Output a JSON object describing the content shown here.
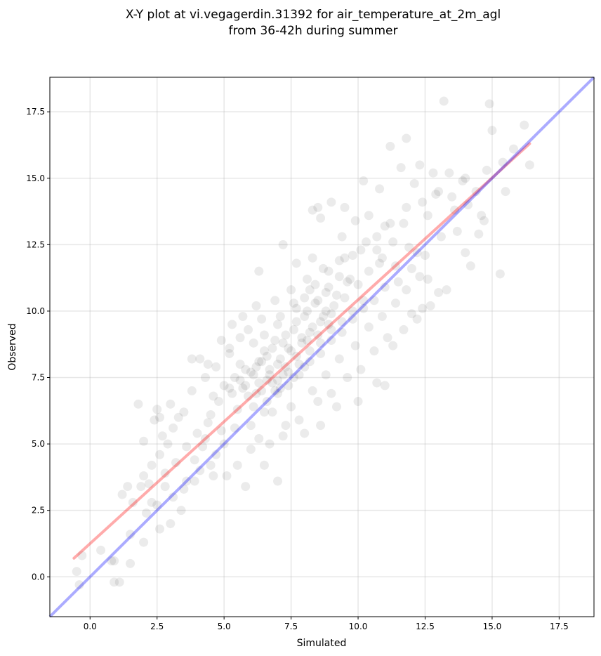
{
  "chart_data": {
    "type": "scatter",
    "title": [
      "X-Y plot at vi.vegagerdin.31392 for air_temperature_at_2m_agl",
      "from 36-42h during summer"
    ],
    "xlabel": "Simulated",
    "ylabel": "Observed",
    "xlim": [
      -1.5,
      18.8
    ],
    "ylim": [
      -1.5,
      18.8
    ],
    "xticks": [
      0.0,
      2.5,
      5.0,
      7.5,
      10.0,
      12.5,
      15.0,
      17.5
    ],
    "yticks": [
      0.0,
      2.5,
      5.0,
      7.5,
      10.0,
      12.5,
      15.0,
      17.5
    ],
    "xtick_labels": [
      "0.0",
      "2.5",
      "5.0",
      "7.5",
      "10.0",
      "12.5",
      "15.0",
      "17.5"
    ],
    "ytick_labels": [
      "0.0",
      "2.5",
      "5.0",
      "7.5",
      "10.0",
      "12.5",
      "15.0",
      "17.5"
    ],
    "grid": true,
    "point_color": "#000000",
    "point_alpha": 0.08,
    "identity_line": {
      "color": "#0000ff",
      "alpha": 0.33,
      "x": [
        -1.5,
        18.8
      ],
      "y": [
        -1.5,
        18.8
      ]
    },
    "fit_line": {
      "color": "#ff0000",
      "alpha": 0.33,
      "x": [
        -0.6,
        16.4
      ],
      "y": [
        0.7,
        16.3
      ]
    },
    "points": [
      [
        -0.5,
        0.2
      ],
      [
        -0.3,
        0.8
      ],
      [
        0.4,
        1.0
      ],
      [
        0.8,
        0.6
      ],
      [
        1.1,
        -0.2
      ],
      [
        0.9,
        -0.2
      ],
      [
        0.9,
        0.6
      ],
      [
        1.5,
        0.5
      ],
      [
        -0.4,
        -0.3
      ],
      [
        1.8,
        6.5
      ],
      [
        2.0,
        5.1
      ],
      [
        2.5,
        6.3
      ],
      [
        2.6,
        6.0
      ],
      [
        2.2,
        3.5
      ],
      [
        2.8,
        3.9
      ],
      [
        2.5,
        2.7
      ],
      [
        2.0,
        1.3
      ],
      [
        1.5,
        1.6
      ],
      [
        1.2,
        3.1
      ],
      [
        1.4,
        3.4
      ],
      [
        3.0,
        2.0
      ],
      [
        3.4,
        2.5
      ],
      [
        4.1,
        8.2
      ],
      [
        3.8,
        8.2
      ],
      [
        4.4,
        8.0
      ],
      [
        4.9,
        8.9
      ],
      [
        5.2,
        8.6
      ],
      [
        6.3,
        11.5
      ],
      [
        7.2,
        12.5
      ],
      [
        7.7,
        11.8
      ],
      [
        8.3,
        12.0
      ],
      [
        8.3,
        13.8
      ],
      [
        8.5,
        13.9
      ],
      [
        9.0,
        14.1
      ],
      [
        8.6,
        13.5
      ],
      [
        9.5,
        13.9
      ],
      [
        10.2,
        14.9
      ],
      [
        10.8,
        14.6
      ],
      [
        11.2,
        16.2
      ],
      [
        11.8,
        16.5
      ],
      [
        13.2,
        17.9
      ],
      [
        14.9,
        17.8
      ],
      [
        15.0,
        16.8
      ],
      [
        16.2,
        17.0
      ],
      [
        15.8,
        16.1
      ],
      [
        15.5,
        14.5
      ],
      [
        16.4,
        15.5
      ],
      [
        15.3,
        11.4
      ],
      [
        14.2,
        11.7
      ],
      [
        13.7,
        13.0
      ],
      [
        13.0,
        10.7
      ],
      [
        12.6,
        11.2
      ],
      [
        12.4,
        10.1
      ],
      [
        12.0,
        9.9
      ],
      [
        11.1,
        9.0
      ],
      [
        11.0,
        7.2
      ],
      [
        10.7,
        7.3
      ],
      [
        10.0,
        6.6
      ],
      [
        9.2,
        6.4
      ],
      [
        8.6,
        5.7
      ],
      [
        8.0,
        5.4
      ],
      [
        7.0,
        3.6
      ],
      [
        6.5,
        4.2
      ],
      [
        5.8,
        3.4
      ],
      [
        5.1,
        3.8
      ],
      [
        4.6,
        3.8
      ],
      [
        6.3,
        5.2
      ],
      [
        7.3,
        5.7
      ],
      [
        14.6,
        13.6
      ],
      [
        14.7,
        13.4
      ],
      [
        14.1,
        14.0
      ],
      [
        13.4,
        15.2
      ],
      [
        12.8,
        15.2
      ],
      [
        12.3,
        15.5
      ],
      [
        12.1,
        14.8
      ],
      [
        11.6,
        15.4
      ],
      [
        10.4,
        13.6
      ],
      [
        9.9,
        13.4
      ],
      [
        9.4,
        12.8
      ],
      [
        10.7,
        12.3
      ],
      [
        11.9,
        12.4
      ],
      [
        12.6,
        13.6
      ],
      [
        13.1,
        12.8
      ],
      [
        12.2,
        12.2
      ],
      [
        11.4,
        11.7
      ],
      [
        10.8,
        11.8
      ],
      [
        9.7,
        11.2
      ],
      [
        8.8,
        10.7
      ],
      [
        8.2,
        10.8
      ],
      [
        7.7,
        10.1
      ],
      [
        7.0,
        9.5
      ],
      [
        6.4,
        9.7
      ],
      [
        5.9,
        9.3
      ],
      [
        5.6,
        9.0
      ],
      [
        5.2,
        8.4
      ],
      [
        4.7,
        7.9
      ],
      [
        4.3,
        7.5
      ],
      [
        3.8,
        7.0
      ],
      [
        3.5,
        6.2
      ],
      [
        3.1,
        5.6
      ],
      [
        2.9,
        5.0
      ],
      [
        2.6,
        4.6
      ],
      [
        2.3,
        4.2
      ],
      [
        2.0,
        3.8
      ],
      [
        3.6,
        4.9
      ],
      [
        4.0,
        5.4
      ],
      [
        4.5,
        6.1
      ],
      [
        4.9,
        5.5
      ],
      [
        5.3,
        6.9
      ],
      [
        5.7,
        7.1
      ],
      [
        6.1,
        7.6
      ],
      [
        6.4,
        8.1
      ],
      [
        6.8,
        8.6
      ],
      [
        7.2,
        8.8
      ],
      [
        7.6,
        9.3
      ],
      [
        8.0,
        9.8
      ],
      [
        8.4,
        10.3
      ],
      [
        8.8,
        10.0
      ],
      [
        9.2,
        10.6
      ],
      [
        9.6,
        11.1
      ],
      [
        10.0,
        11.0
      ],
      [
        10.4,
        11.5
      ],
      [
        10.9,
        12.0
      ],
      [
        11.3,
        12.6
      ],
      [
        6.0,
        5.7
      ],
      [
        6.5,
        6.2
      ],
      [
        7.0,
        6.9
      ],
      [
        7.4,
        7.2
      ],
      [
        7.8,
        7.6
      ],
      [
        8.2,
        8.1
      ],
      [
        8.6,
        8.4
      ],
      [
        9.0,
        8.9
      ],
      [
        9.4,
        9.2
      ],
      [
        9.8,
        9.7
      ],
      [
        10.2,
        10.1
      ],
      [
        10.6,
        10.4
      ],
      [
        11.0,
        10.9
      ],
      [
        11.5,
        11.1
      ],
      [
        12.0,
        11.6
      ],
      [
        12.5,
        12.1
      ],
      [
        5.5,
        6.3
      ],
      [
        5.9,
        6.8
      ],
      [
        6.3,
        7.3
      ],
      [
        6.7,
        7.8
      ],
      [
        7.1,
        8.2
      ],
      [
        7.5,
        8.5
      ],
      [
        7.9,
        9.0
      ],
      [
        8.3,
        9.4
      ],
      [
        8.7,
        9.8
      ],
      [
        9.1,
        10.2
      ],
      [
        9.5,
        10.5
      ],
      [
        5.4,
        7.5
      ],
      [
        5.8,
        7.8
      ],
      [
        6.2,
        7.9
      ],
      [
        6.6,
        7.4
      ],
      [
        6.9,
        7.0
      ],
      [
        7.3,
        7.9
      ],
      [
        7.7,
        8.3
      ],
      [
        8.1,
        8.9
      ],
      [
        8.5,
        9.1
      ],
      [
        8.9,
        9.5
      ],
      [
        6.1,
        6.4
      ],
      [
        6.6,
        6.6
      ],
      [
        7.1,
        7.1
      ],
      [
        7.6,
        7.5
      ],
      [
        8.0,
        7.9
      ],
      [
        4.8,
        6.6
      ],
      [
        5.2,
        7.1
      ],
      [
        5.6,
        7.4
      ],
      [
        4.4,
        5.8
      ],
      [
        4.2,
        4.9
      ],
      [
        3.9,
        4.4
      ],
      [
        4.7,
        4.6
      ],
      [
        5.0,
        5.0
      ],
      [
        5.4,
        5.6
      ],
      [
        6.8,
        6.2
      ],
      [
        7.5,
        6.4
      ],
      [
        8.3,
        7.0
      ],
      [
        8.8,
        7.6
      ],
      [
        9.3,
        8.2
      ],
      [
        9.9,
        8.7
      ],
      [
        10.4,
        9.4
      ],
      [
        10.9,
        9.8
      ],
      [
        11.4,
        10.3
      ],
      [
        11.8,
        10.8
      ],
      [
        12.3,
        11.3
      ],
      [
        13.6,
        13.8
      ],
      [
        14.4,
        14.5
      ],
      [
        13.9,
        14.9
      ],
      [
        12.9,
        14.4
      ],
      [
        11.7,
        13.3
      ],
      [
        11.0,
        13.2
      ],
      [
        10.3,
        12.6
      ],
      [
        9.8,
        12.1
      ],
      [
        9.3,
        11.9
      ],
      [
        8.7,
        11.6
      ],
      [
        8.1,
        11.2
      ],
      [
        7.5,
        10.8
      ],
      [
        6.9,
        10.4
      ],
      [
        6.2,
        10.2
      ],
      [
        5.7,
        9.8
      ],
      [
        5.3,
        9.5
      ],
      [
        3.3,
        6.0
      ],
      [
        3.0,
        6.5
      ],
      [
        2.7,
        5.3
      ],
      [
        2.4,
        5.9
      ],
      [
        3.2,
        4.3
      ],
      [
        2.8,
        3.4
      ],
      [
        3.6,
        3.6
      ],
      [
        4.1,
        4.0
      ],
      [
        4.5,
        4.2
      ],
      [
        5.5,
        4.2
      ],
      [
        6.0,
        4.8
      ],
      [
        6.7,
        5.0
      ],
      [
        7.2,
        5.3
      ],
      [
        7.8,
        5.9
      ],
      [
        8.5,
        6.6
      ],
      [
        9.0,
        6.9
      ],
      [
        9.6,
        7.5
      ],
      [
        10.1,
        7.8
      ],
      [
        10.6,
        8.5
      ],
      [
        11.3,
        8.7
      ],
      [
        11.7,
        9.3
      ],
      [
        12.2,
        9.7
      ],
      [
        12.7,
        10.2
      ],
      [
        13.3,
        10.8
      ],
      [
        14.0,
        12.2
      ],
      [
        14.5,
        12.9
      ],
      [
        6.4,
        7.0
      ],
      [
        6.8,
        7.3
      ],
      [
        7.2,
        7.6
      ],
      [
        7.0,
        8.0
      ],
      [
        6.6,
        8.3
      ],
      [
        7.4,
        8.6
      ],
      [
        7.9,
        8.8
      ],
      [
        8.2,
        9.2
      ],
      [
        8.6,
        9.6
      ],
      [
        9.0,
        9.9
      ],
      [
        5.8,
        7.2
      ],
      [
        6.0,
        7.7
      ],
      [
        6.3,
        8.1
      ],
      [
        6.5,
        8.5
      ],
      [
        6.9,
        8.9
      ],
      [
        7.3,
        9.1
      ],
      [
        7.7,
        9.6
      ],
      [
        8.1,
        10.0
      ],
      [
        8.5,
        10.4
      ],
      [
        8.9,
        10.9
      ],
      [
        9.3,
        11.3
      ],
      [
        6.2,
        6.9
      ],
      [
        6.7,
        7.6
      ],
      [
        7.0,
        7.4
      ],
      [
        7.4,
        7.7
      ],
      [
        7.8,
        8.0
      ],
      [
        8.2,
        8.5
      ],
      [
        8.6,
        8.8
      ],
      [
        9.0,
        9.3
      ],
      [
        9.4,
        9.6
      ],
      [
        9.8,
        10.0
      ],
      [
        10.2,
        10.4
      ],
      [
        1.6,
        2.8
      ],
      [
        1.9,
        3.4
      ],
      [
        2.3,
        2.8
      ],
      [
        2.1,
        2.4
      ],
      [
        2.6,
        1.8
      ],
      [
        3.1,
        3.0
      ],
      [
        3.5,
        3.3
      ],
      [
        3.9,
        3.6
      ],
      [
        4.3,
        5.2
      ],
      [
        4.6,
        6.8
      ],
      [
        5.0,
        7.2
      ],
      [
        5.6,
        8.0
      ],
      [
        6.1,
        8.8
      ],
      [
        6.5,
        9.1
      ],
      [
        7.1,
        9.8
      ],
      [
        7.6,
        10.3
      ],
      [
        8.0,
        10.5
      ],
      [
        8.4,
        11.0
      ],
      [
        8.9,
        11.5
      ],
      [
        9.5,
        12.0
      ],
      [
        10.1,
        12.3
      ],
      [
        10.7,
        12.8
      ],
      [
        11.2,
        13.3
      ],
      [
        11.8,
        13.9
      ],
      [
        12.4,
        14.1
      ],
      [
        13.0,
        14.5
      ],
      [
        13.5,
        14.3
      ],
      [
        14.0,
        15.0
      ],
      [
        14.8,
        15.3
      ],
      [
        15.4,
        15.6
      ]
    ]
  }
}
